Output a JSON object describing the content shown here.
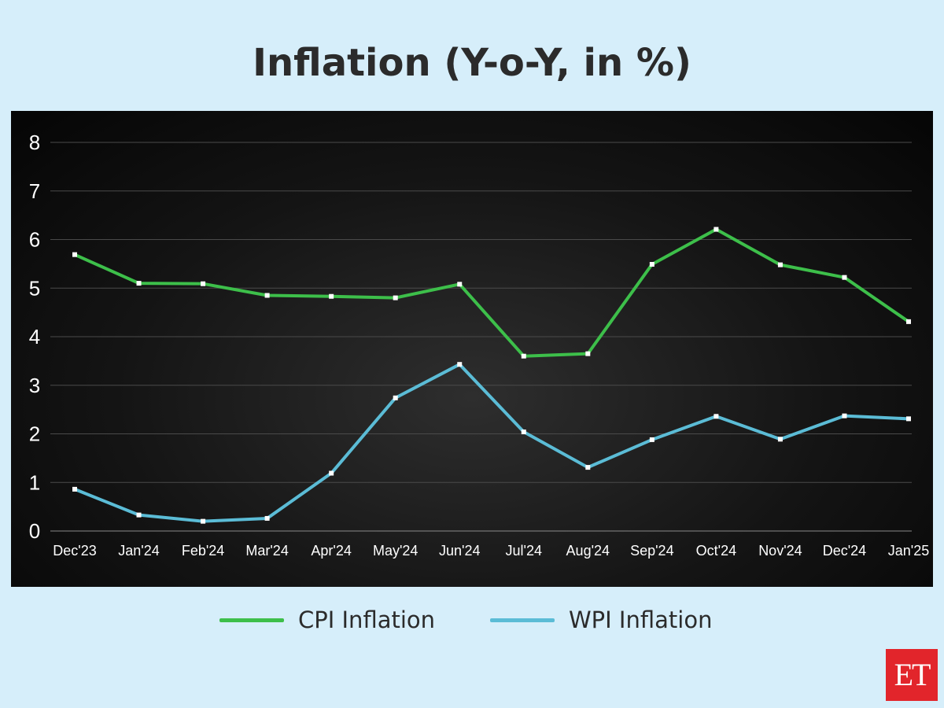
{
  "chart_data": {
    "type": "line",
    "title": "Inflation (Y-o-Y, in %)",
    "categories": [
      "Dec'23",
      "Jan'24",
      "Feb'24",
      "Mar'24",
      "Apr'24",
      "May'24",
      "Jun'24",
      "Jul'24",
      "Aug'24",
      "Sep'24",
      "Oct'24",
      "Nov'24",
      "Dec'24",
      "Jan'25"
    ],
    "series": [
      {
        "name": "CPI Inflation",
        "color": "#3dbf4a",
        "values": [
          5.69,
          5.1,
          5.09,
          4.85,
          4.83,
          4.8,
          5.08,
          3.6,
          3.65,
          5.49,
          6.21,
          5.48,
          5.22,
          4.31
        ]
      },
      {
        "name": "WPI Inflation",
        "color": "#5bbcd6",
        "values": [
          0.86,
          0.33,
          0.2,
          0.26,
          1.19,
          2.74,
          3.43,
          2.04,
          1.31,
          1.88,
          2.36,
          1.89,
          2.37,
          2.31
        ]
      }
    ],
    "y_ticks": [
      "0",
      "1",
      "2",
      "3",
      "4",
      "5",
      "6",
      "7",
      "8"
    ],
    "ylim": [
      0,
      8
    ],
    "grid": true,
    "legend_position": "bottom"
  },
  "logo": {
    "text": "ET"
  }
}
